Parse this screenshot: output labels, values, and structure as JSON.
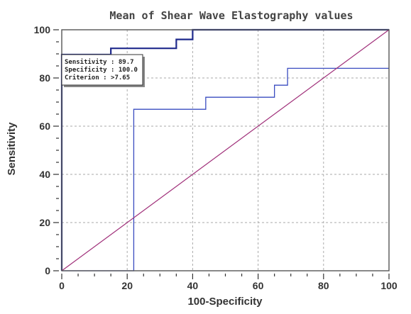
{
  "chart_data": {
    "type": "line",
    "title": "Mean of Shear Wave Elastography values",
    "xlabel": "100-Specificity",
    "ylabel": "Sensitivity",
    "xlim": [
      0,
      100
    ],
    "ylim": [
      0,
      100
    ],
    "xticks": [
      0,
      20,
      40,
      60,
      80,
      100
    ],
    "yticks": [
      0,
      20,
      40,
      60,
      80,
      100
    ],
    "grid": true,
    "series": [
      {
        "role": "roc-curve",
        "color": "#1f2a8c",
        "x": [
          0,
          0,
          15,
          15,
          35,
          35,
          40,
          40,
          100
        ],
        "y": [
          0,
          89.7,
          89.7,
          92.3,
          92.3,
          96,
          96,
          100,
          100
        ]
      },
      {
        "role": "confidence-bound",
        "color": "#3a4cc0",
        "x": [
          0,
          20,
          22,
          22,
          44,
          44,
          65,
          65,
          69,
          69,
          100
        ],
        "y": [
          0,
          0,
          0,
          67,
          67,
          72,
          72,
          77,
          77,
          84,
          84
        ]
      },
      {
        "role": "reference-line",
        "color": "#a0307a",
        "x": [
          0,
          100
        ],
        "y": [
          0,
          100
        ]
      }
    ],
    "annotation": {
      "lines": [
        "Sensitivity : 89.7",
        "Specificity : 100.0",
        "Criterion : >7.65"
      ],
      "point": {
        "x": 0,
        "y": 89.7
      }
    }
  }
}
